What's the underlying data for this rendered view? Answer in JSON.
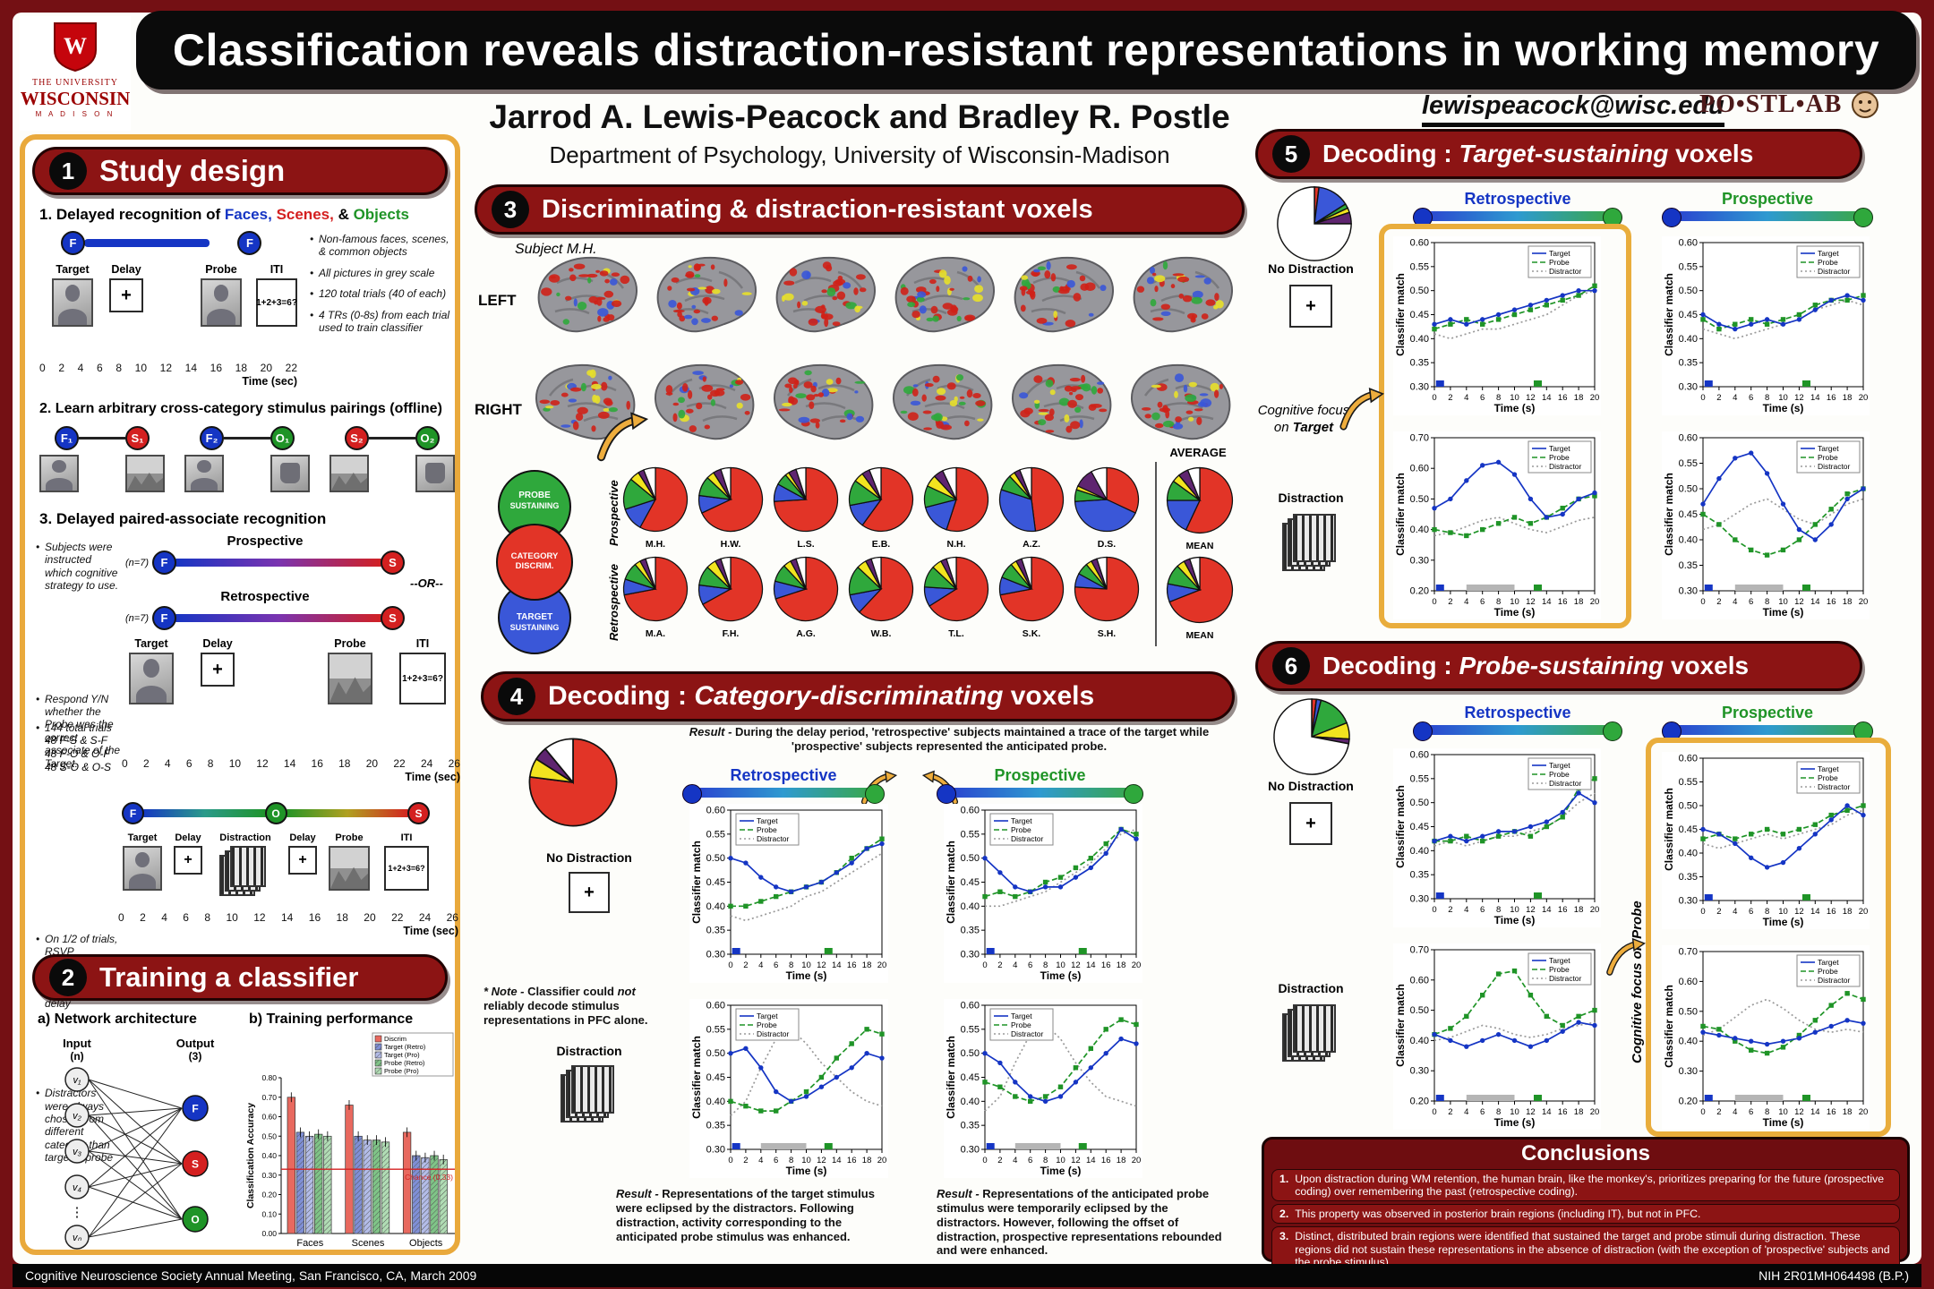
{
  "poster": {
    "title": "Classification reveals distraction-resistant representations in working memory",
    "authors": "Jarrod A. Lewis-Peacock and Bradley R. Postle",
    "affiliation": "Department of Psychology, University of Wisconsin-Madison",
    "email": "lewispeacock@wisc.edu",
    "lab": "PO•STL•AB",
    "footer_left": "Cognitive Neuroscience Society Annual Meeting, San Francisco, CA, March 2009",
    "footer_right": "NIH 2R01MH064498 (B.P.)"
  },
  "uw": {
    "line1": "THE UNIVERSITY",
    "line2": "WISCONSIN",
    "line3": "M A D I S O N",
    "w": "W"
  },
  "sym": {
    "fix": "+",
    "or": "--OR--"
  },
  "axes": {
    "ylabel": "Classifier match",
    "xlabel": "Time (s)",
    "x": [
      0,
      2,
      4,
      6,
      8,
      10,
      12,
      14,
      16,
      18,
      20
    ],
    "legend": [
      "Target",
      "Probe",
      "Distractor"
    ]
  },
  "s1": {
    "num": "1",
    "title": "Study design",
    "p1_lead": "1. Delayed recognition of",
    "p1_faces": "Faces,",
    "p1_scenes": "Scenes,",
    "p1_amp": "&",
    "p1_objects": "Objects",
    "tl1_phases": [
      "Target",
      "Delay",
      "Probe",
      "ITI"
    ],
    "iti": "1+2+3=6?",
    "bullets": [
      "Non-famous faces, scenes, & common objects",
      "All pictures in grey scale",
      "120 total trials (40 of each)",
      "4 TRs (0-8s) from each trial used to train classifier"
    ],
    "axis1": [
      "0",
      "2",
      "4",
      "6",
      "8",
      "10",
      "12",
      "14",
      "16",
      "18",
      "20",
      "22"
    ],
    "time_label": "Time (sec)",
    "p2_head": "2. Learn arbitrary cross-category stimulus pairings (offline)",
    "pairs": [
      {
        "a": "F₁",
        "b": "S₁"
      },
      {
        "a": "F₂",
        "b": "O₁"
      },
      {
        "a": "S₂",
        "b": "O₂"
      }
    ],
    "p3_head": "3. Delayed paired-associate recognition",
    "n_label": "(n=7)",
    "prospective": "Prospective",
    "retrospective": "Retrospective",
    "letters": {
      "f": "F",
      "s": "S",
      "o": "O"
    },
    "b_strategy": "Subjects were instructed which cognitive strategy to use.",
    "tl2_phases": [
      "Target",
      "Delay",
      "Probe",
      "ITI"
    ],
    "b_respond": "Respond Y/N whether the Probe was the correct associate of the Target.",
    "trials": [
      "144 total trials",
      "48 F-S & S-F",
      "48 F-O & O-F",
      "48 S-O & O-S"
    ],
    "axis2": [
      "0",
      "2",
      "4",
      "6",
      "8",
      "10",
      "12",
      "14",
      "16",
      "18",
      "20",
      "22",
      "24",
      "26"
    ],
    "b_rsvp": "On 1/2 of trials, RSVP distraction of irrelevant stimuli during delay",
    "tl3_phases": [
      "Target",
      "Delay",
      "Distraction",
      "Delay",
      "Probe",
      "ITI"
    ],
    "b_distract": "Distractors were always chosen from different category than target & probe"
  },
  "s2": {
    "num": "2",
    "title": "Training a classifier",
    "a_head": "a) Network architecture",
    "b_head": "b) Training performance",
    "network": {
      "input_label": "Input",
      "input_sub": "(n)",
      "output_label": "Output",
      "output_sub": "(3)",
      "nodes": [
        "v₁",
        "v₂",
        "v₃",
        "v₄",
        "vₙ"
      ],
      "outputs": [
        {
          "l": "F",
          "c": "#1535c4"
        },
        {
          "l": "S",
          "c": "#d42020"
        },
        {
          "l": "O",
          "c": "#1f9427"
        }
      ]
    },
    "chart": {
      "type": "bar",
      "ylabel": "Classification Accuracy",
      "ylim": [
        0,
        0.8
      ],
      "categories": [
        "Faces",
        "Scenes",
        "Objects"
      ],
      "series": [
        {
          "name": "Discrim",
          "color": "#e8695f",
          "hatch": false,
          "values": [
            0.7,
            0.66,
            0.52
          ]
        },
        {
          "name": "Target (Retro)",
          "color": "#7f8fd6",
          "hatch": true,
          "values": [
            0.52,
            0.5,
            0.4
          ]
        },
        {
          "name": "Target (Pro)",
          "color": "#b3bce8",
          "hatch": true,
          "values": [
            0.5,
            0.48,
            0.39
          ]
        },
        {
          "name": "Probe (Retro)",
          "color": "#7fc487",
          "hatch": true,
          "values": [
            0.51,
            0.48,
            0.4
          ]
        },
        {
          "name": "Probe (Pro)",
          "color": "#b0dcb4",
          "hatch": true,
          "values": [
            0.5,
            0.47,
            0.38
          ]
        }
      ],
      "chance": 0.33,
      "chance_label": "Chance (0.33)"
    }
  },
  "s3": {
    "num": "3",
    "title": "Discriminating & distraction-resistant voxels",
    "subject": "Subject M.H.",
    "left": "LEFT",
    "right": "RIGHT",
    "venn": {
      "probe": [
        "PROBE",
        "SUSTAINING"
      ],
      "cat": [
        "CATEGORY",
        "DISCRIM."
      ],
      "target": [
        "TARGET",
        "SUSTAINING"
      ]
    },
    "row1_label": "Prospective",
    "row2_label": "Retrospective",
    "average": "AVERAGE",
    "mean_label": "MEAN",
    "pies_row1": [
      {
        "label": "M.H.",
        "slices": [
          0.58,
          0.12,
          0.16,
          0.05,
          0.03,
          0.06
        ]
      },
      {
        "label": "H.W.",
        "slices": [
          0.68,
          0.09,
          0.1,
          0.04,
          0.04,
          0.05
        ]
      },
      {
        "label": "L.S.",
        "slices": [
          0.74,
          0.09,
          0.06,
          0.02,
          0.04,
          0.05
        ]
      },
      {
        "label": "E.B.",
        "slices": [
          0.6,
          0.12,
          0.13,
          0.05,
          0.04,
          0.06
        ]
      },
      {
        "label": "N.H.",
        "slices": [
          0.55,
          0.16,
          0.11,
          0.06,
          0.05,
          0.07
        ]
      },
      {
        "label": "A.Z.",
        "slices": [
          0.48,
          0.32,
          0.08,
          0.03,
          0.03,
          0.06
        ]
      },
      {
        "label": "D.S.",
        "slices": [
          0.32,
          0.42,
          0.06,
          0.02,
          0.1,
          0.08
        ]
      }
    ],
    "mean1": {
      "label": "MEAN",
      "slices": [
        0.57,
        0.18,
        0.1,
        0.04,
        0.05,
        0.06
      ]
    },
    "pies_row2": [
      {
        "label": "M.A.",
        "slices": [
          0.72,
          0.08,
          0.09,
          0.03,
          0.03,
          0.05
        ]
      },
      {
        "label": "F.H.",
        "slices": [
          0.67,
          0.1,
          0.1,
          0.05,
          0.03,
          0.05
        ]
      },
      {
        "label": "A.G.",
        "slices": [
          0.7,
          0.09,
          0.09,
          0.04,
          0.03,
          0.05
        ]
      },
      {
        "label": "W.B.",
        "slices": [
          0.62,
          0.1,
          0.15,
          0.05,
          0.03,
          0.05
        ]
      },
      {
        "label": "T.L.",
        "slices": [
          0.66,
          0.1,
          0.11,
          0.05,
          0.03,
          0.05
        ]
      },
      {
        "label": "S.K.",
        "slices": [
          0.72,
          0.09,
          0.08,
          0.03,
          0.03,
          0.05
        ]
      },
      {
        "label": "S.H.",
        "slices": [
          0.76,
          0.07,
          0.06,
          0.03,
          0.03,
          0.05
        ]
      }
    ],
    "mean2": {
      "label": "MEAN",
      "slices": [
        0.69,
        0.09,
        0.1,
        0.04,
        0.03,
        0.05
      ]
    }
  },
  "s4": {
    "num": "4",
    "title_pre": "Decoding :",
    "title_it": "Category-discriminating",
    "title_post": "voxels",
    "pie": [
      0.77,
      0.0,
      0.0,
      0.07,
      0.05,
      0.11
    ],
    "result_top_b": "Result -",
    "result_top": "During the delay period, 'retrospective' subjects maintained a trace of the target while 'prospective' subjects represented the anticipated probe.",
    "retro": "Retrospective",
    "pro": "Prospective",
    "no_dist": "No Distraction",
    "dist": "Distraction",
    "note_pre": "* Note -",
    "note_a": "Classifier could",
    "note_it": "not",
    "note_b": "reliably decode stimulus representations in PFC alone.",
    "result_bl_b": "Result -",
    "result_bl": "Representations of the target stimulus were eclipsed by the distractors. Following distraction, activity corresponding to the anticipated probe stimulus was enhanced.",
    "result_br_b": "Result -",
    "result_br": "Representations of the anticipated probe stimulus were temporarily eclipsed by the distractors. However, following the offset of distraction, prospective representations rebounded and were enhanced.",
    "charts": {
      "rn": {
        "ylim": [
          0.3,
          0.6
        ],
        "ev": "nd",
        "leg": "tl",
        "target": [
          0.5,
          0.49,
          0.46,
          0.44,
          0.43,
          0.44,
          0.45,
          0.47,
          0.49,
          0.52,
          0.53
        ],
        "probe": [
          0.4,
          0.4,
          0.41,
          0.42,
          0.43,
          0.44,
          0.45,
          0.47,
          0.5,
          0.52,
          0.54
        ],
        "distractor": [
          0.38,
          0.37,
          0.38,
          0.39,
          0.4,
          0.42,
          0.43,
          0.45,
          0.47,
          0.49,
          0.51
        ]
      },
      "pn": {
        "ylim": [
          0.3,
          0.6
        ],
        "ev": "nd",
        "leg": "tl",
        "target": [
          0.5,
          0.47,
          0.44,
          0.43,
          0.44,
          0.44,
          0.46,
          0.48,
          0.51,
          0.56,
          0.54
        ],
        "probe": [
          0.42,
          0.43,
          0.42,
          0.43,
          0.45,
          0.46,
          0.48,
          0.5,
          0.53,
          0.56,
          0.55
        ],
        "distractor": [
          0.4,
          0.4,
          0.41,
          0.42,
          0.43,
          0.45,
          0.47,
          0.49,
          0.52,
          0.55,
          0.56
        ]
      },
      "rd": {
        "ylim": [
          0.3,
          0.6
        ],
        "ev": "d",
        "leg": "tl",
        "target": [
          0.5,
          0.51,
          0.47,
          0.42,
          0.4,
          0.41,
          0.43,
          0.45,
          0.47,
          0.5,
          0.49
        ],
        "probe": [
          0.4,
          0.39,
          0.38,
          0.38,
          0.4,
          0.42,
          0.45,
          0.49,
          0.52,
          0.55,
          0.54
        ],
        "distractor": [
          0.37,
          0.4,
          0.47,
          0.53,
          0.55,
          0.52,
          0.48,
          0.45,
          0.42,
          0.4,
          0.39
        ]
      },
      "pd": {
        "ylim": [
          0.3,
          0.6
        ],
        "ev": "d",
        "leg": "tl",
        "target": [
          0.5,
          0.48,
          0.44,
          0.41,
          0.4,
          0.41,
          0.44,
          0.47,
          0.5,
          0.53,
          0.52
        ],
        "probe": [
          0.44,
          0.43,
          0.41,
          0.4,
          0.41,
          0.43,
          0.47,
          0.51,
          0.55,
          0.57,
          0.56
        ],
        "distractor": [
          0.38,
          0.41,
          0.48,
          0.54,
          0.56,
          0.53,
          0.48,
          0.44,
          0.41,
          0.4,
          0.39
        ]
      }
    }
  },
  "s5": {
    "num": "5",
    "title_pre": "Decoding :",
    "title_it": "Target-sustaining",
    "title_post": "voxels",
    "pie": [
      0.02,
      0.14,
      0.02,
      0.02,
      0.05,
      0.75
    ],
    "retro": "Retrospective",
    "pro": "Prospective",
    "no_dist": "No Distraction",
    "dist": "Distraction",
    "focus_pre": "Cognitive focus",
    "focus_on": "on",
    "focus_word": "Target",
    "charts": {
      "rn": {
        "ylim": [
          0.3,
          0.6
        ],
        "ev": "nd",
        "leg": "tr",
        "target": [
          0.43,
          0.44,
          0.43,
          0.44,
          0.45,
          0.46,
          0.47,
          0.48,
          0.49,
          0.5,
          0.5
        ],
        "probe": [
          0.42,
          0.43,
          0.44,
          0.43,
          0.44,
          0.45,
          0.46,
          0.47,
          0.48,
          0.49,
          0.51
        ],
        "distractor": [
          0.41,
          0.4,
          0.41,
          0.42,
          0.42,
          0.43,
          0.44,
          0.45,
          0.47,
          0.49,
          0.5
        ]
      },
      "pn": {
        "ylim": [
          0.3,
          0.6
        ],
        "ev": "nd",
        "leg": "tr",
        "target": [
          0.45,
          0.43,
          0.42,
          0.43,
          0.44,
          0.43,
          0.44,
          0.46,
          0.48,
          0.49,
          0.48
        ],
        "probe": [
          0.44,
          0.42,
          0.43,
          0.44,
          0.43,
          0.44,
          0.45,
          0.47,
          0.48,
          0.48,
          0.49
        ],
        "distractor": [
          0.42,
          0.41,
          0.4,
          0.41,
          0.42,
          0.43,
          0.44,
          0.46,
          0.47,
          0.48,
          0.47
        ]
      },
      "rd": {
        "ylim": [
          0.2,
          0.7
        ],
        "ev": "d",
        "leg": "tr",
        "target": [
          0.47,
          0.5,
          0.56,
          0.61,
          0.62,
          0.58,
          0.5,
          0.44,
          0.45,
          0.5,
          0.52
        ],
        "probe": [
          0.4,
          0.39,
          0.38,
          0.4,
          0.42,
          0.44,
          0.42,
          0.44,
          0.47,
          0.5,
          0.51
        ],
        "distractor": [
          0.38,
          0.39,
          0.41,
          0.43,
          0.44,
          0.42,
          0.4,
          0.39,
          0.41,
          0.43,
          0.44
        ]
      },
      "pd": {
        "ylim": [
          0.3,
          0.6
        ],
        "ev": "d",
        "leg": "tr",
        "target": [
          0.47,
          0.52,
          0.56,
          0.57,
          0.53,
          0.47,
          0.42,
          0.4,
          0.43,
          0.48,
          0.5
        ],
        "probe": [
          0.45,
          0.43,
          0.4,
          0.38,
          0.37,
          0.38,
          0.4,
          0.43,
          0.46,
          0.49,
          0.5
        ],
        "distractor": [
          0.42,
          0.43,
          0.45,
          0.47,
          0.48,
          0.46,
          0.44,
          0.43,
          0.45,
          0.47,
          0.48
        ]
      }
    }
  },
  "s6": {
    "num": "6",
    "title_pre": "Decoding :",
    "title_it": "Probe-sustaining",
    "title_post": "voxels",
    "pie": [
      0.02,
      0.02,
      0.15,
      0.07,
      0.02,
      0.72
    ],
    "retro": "Retrospective",
    "pro": "Prospective",
    "no_dist": "No Distraction",
    "dist": "Distraction",
    "focus_pre": "Cognitive focus",
    "focus_on": "on",
    "focus_word": "Probe",
    "charts": {
      "rn": {
        "ylim": [
          0.3,
          0.6
        ],
        "ev": "nd",
        "leg": "tr",
        "target": [
          0.42,
          0.43,
          0.42,
          0.43,
          0.44,
          0.44,
          0.45,
          0.46,
          0.48,
          0.52,
          0.5
        ],
        "probe": [
          0.42,
          0.42,
          0.43,
          0.42,
          0.43,
          0.44,
          0.43,
          0.45,
          0.47,
          0.53,
          0.55
        ],
        "distractor": [
          0.41,
          0.42,
          0.41,
          0.42,
          0.43,
          0.43,
          0.44,
          0.45,
          0.47,
          0.5,
          0.52
        ]
      },
      "pn": {
        "ylim": [
          0.3,
          0.6
        ],
        "ev": "nd",
        "leg": "tr",
        "target": [
          0.45,
          0.44,
          0.42,
          0.39,
          0.37,
          0.38,
          0.41,
          0.44,
          0.47,
          0.5,
          0.48
        ],
        "probe": [
          0.43,
          0.44,
          0.43,
          0.44,
          0.45,
          0.44,
          0.45,
          0.46,
          0.48,
          0.49,
          0.5
        ],
        "distractor": [
          0.42,
          0.41,
          0.42,
          0.43,
          0.44,
          0.43,
          0.44,
          0.45,
          0.46,
          0.48,
          0.49
        ]
      },
      "rd": {
        "ylim": [
          0.2,
          0.7
        ],
        "ev": "d",
        "leg": "tr",
        "target": [
          0.42,
          0.4,
          0.38,
          0.4,
          0.42,
          0.4,
          0.38,
          0.4,
          0.43,
          0.46,
          0.45
        ],
        "probe": [
          0.42,
          0.44,
          0.48,
          0.55,
          0.62,
          0.63,
          0.55,
          0.48,
          0.45,
          0.48,
          0.5
        ],
        "distractor": [
          0.4,
          0.41,
          0.43,
          0.45,
          0.44,
          0.42,
          0.41,
          0.42,
          0.44,
          0.45,
          0.46
        ]
      },
      "pd": {
        "ylim": [
          0.2,
          0.7
        ],
        "ev": "d",
        "leg": "tr",
        "target": [
          0.43,
          0.42,
          0.41,
          0.4,
          0.39,
          0.4,
          0.41,
          0.43,
          0.45,
          0.47,
          0.46
        ],
        "probe": [
          0.45,
          0.44,
          0.4,
          0.37,
          0.36,
          0.38,
          0.42,
          0.47,
          0.52,
          0.56,
          0.54
        ],
        "distractor": [
          0.42,
          0.44,
          0.48,
          0.52,
          0.54,
          0.51,
          0.47,
          0.44,
          0.43,
          0.44,
          0.43
        ]
      }
    }
  },
  "conclusions": {
    "title": "Conclusions",
    "items": [
      {
        "n": "1.",
        "text": "Upon distraction during WM retention, the human brain, like the monkey's, prioritizes preparing for the future (prospective coding) over remembering the past (retrospective coding)."
      },
      {
        "n": "2.",
        "text": "This property was observed in posterior brain regions (including IT), but not in PFC."
      },
      {
        "n": "3.",
        "text": "Distinct, distributed brain regions were identified that sustained the target and probe stimuli during distraction. These regions did not sustain these representations in the absence of distraction (with the exception of 'prospective' subjects and the probe stimulus)."
      }
    ]
  }
}
